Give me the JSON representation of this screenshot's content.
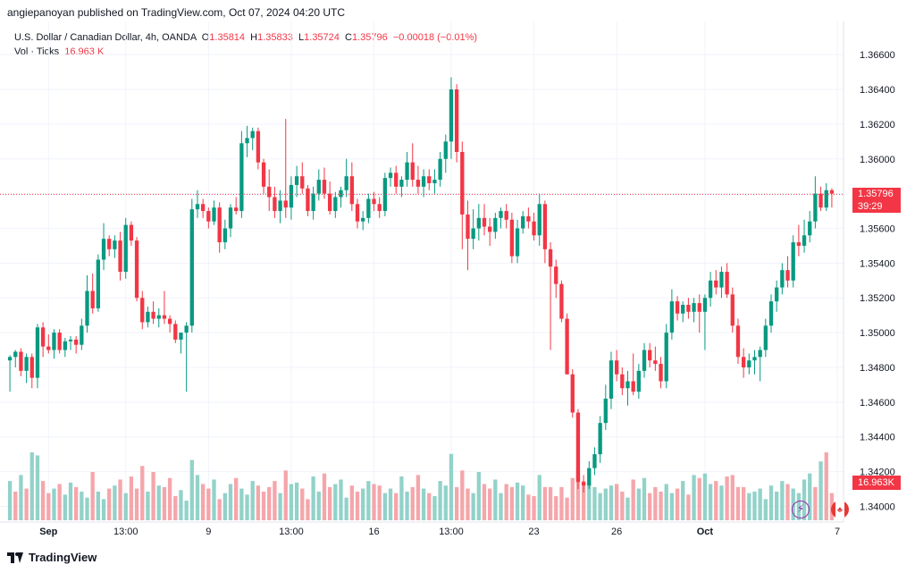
{
  "publisher": "angiepanoyan published on TradingView.com, Oct 07, 2024 04:20 UTC",
  "legend": {
    "symbol": "U.S. Dollar / Canadian Dollar, 4h, OANDA",
    "o_label": "O",
    "o": "1.35814",
    "h_label": "H",
    "h": "1.35833",
    "l_label": "L",
    "l": "1.35724",
    "c_label": "C",
    "c": "1.35796",
    "change": "−0.00018 (−0.01%)",
    "vol_label": "Vol · Ticks",
    "vol_value": "16.963 K"
  },
  "price_tag": {
    "price": "1.35796",
    "countdown": "39:29"
  },
  "volume_tag": "16.963K",
  "footer": {
    "brand": "TradingView"
  },
  "colors": {
    "up": "#089981",
    "down": "#f23645",
    "vol_up": "#92d2c9",
    "vol_down": "#f5a6ab"
  },
  "icons": [
    "lightning-icon",
    "canada-flag-icon",
    "tradingview-logo-icon"
  ],
  "chart_data": {
    "type": "candlestick",
    "y_ticks": [
      "1.34000",
      "1.34200",
      "1.34400",
      "1.34600",
      "1.34800",
      "1.35000",
      "1.35200",
      "1.35400",
      "1.35600",
      "1.35800",
      "1.36000",
      "1.36200",
      "1.36400",
      "1.36600"
    ],
    "y_tick_values": [
      1.34,
      1.342,
      1.344,
      1.346,
      1.348,
      1.35,
      1.352,
      1.354,
      1.356,
      1.358,
      1.36,
      1.362,
      1.364,
      1.366
    ],
    "ylim": [
      1.3392,
      1.3675
    ],
    "x_ticks": [
      {
        "label": "Sep",
        "index": 7
      },
      {
        "label": "13:00",
        "index": 21
      },
      {
        "label": "9",
        "index": 36
      },
      {
        "label": "13:00",
        "index": 51
      },
      {
        "label": "16",
        "index": 66
      },
      {
        "label": "13:00",
        "index": 80
      },
      {
        "label": "23",
        "index": 95
      },
      {
        "label": "26",
        "index": 110
      },
      {
        "label": "Oct",
        "index": 126
      },
      {
        "label": "7",
        "index": 150
      }
    ],
    "grid": true,
    "last_price": 1.35796,
    "vol_max": 16000,
    "candles": [
      [
        1.3484,
        1.3487,
        1.3466,
        1.3486
      ],
      [
        1.3486,
        1.349,
        1.348,
        1.3489
      ],
      [
        1.3489,
        1.3491,
        1.3475,
        1.3478
      ],
      [
        1.3478,
        1.3488,
        1.3471,
        1.3486
      ],
      [
        1.3486,
        1.3488,
        1.3468,
        1.3474
      ],
      [
        1.3474,
        1.3505,
        1.3468,
        1.3503
      ],
      [
        1.3503,
        1.3506,
        1.3486,
        1.3492
      ],
      [
        1.3492,
        1.3499,
        1.3488,
        1.349
      ],
      [
        1.349,
        1.3502,
        1.3485,
        1.35
      ],
      [
        1.35,
        1.3502,
        1.3488,
        1.349
      ],
      [
        1.349,
        1.3497,
        1.3486,
        1.3495
      ],
      [
        1.3495,
        1.3498,
        1.349,
        1.3496
      ],
      [
        1.3496,
        1.3498,
        1.3488,
        1.3493
      ],
      [
        1.3493,
        1.3508,
        1.349,
        1.3504
      ],
      [
        1.3504,
        1.3533,
        1.35,
        1.3524
      ],
      [
        1.3524,
        1.3534,
        1.3511,
        1.3514
      ],
      [
        1.3514,
        1.3545,
        1.3512,
        1.3542
      ],
      [
        1.3542,
        1.3563,
        1.3536,
        1.3554
      ],
      [
        1.3554,
        1.3556,
        1.3544,
        1.3548
      ],
      [
        1.3548,
        1.3556,
        1.3543,
        1.3553
      ],
      [
        1.3553,
        1.3558,
        1.353,
        1.3535
      ],
      [
        1.3535,
        1.3566,
        1.3531,
        1.3562
      ],
      [
        1.3562,
        1.3564,
        1.355,
        1.3553
      ],
      [
        1.3553,
        1.3555,
        1.3518,
        1.352
      ],
      [
        1.352,
        1.3524,
        1.3502,
        1.3506
      ],
      [
        1.3506,
        1.3515,
        1.3503,
        1.3512
      ],
      [
        1.3512,
        1.3518,
        1.3505,
        1.3508
      ],
      [
        1.3508,
        1.3514,
        1.3503,
        1.351
      ],
      [
        1.351,
        1.3524,
        1.3505,
        1.3508
      ],
      [
        1.3508,
        1.351,
        1.35,
        1.3505
      ],
      [
        1.3505,
        1.3507,
        1.3494,
        1.3496
      ],
      [
        1.3496,
        1.35,
        1.3488,
        1.35
      ],
      [
        1.35,
        1.3506,
        1.3466,
        1.3504
      ],
      [
        1.3504,
        1.3577,
        1.35,
        1.3571
      ],
      [
        1.3571,
        1.3582,
        1.3566,
        1.3574
      ],
      [
        1.3574,
        1.3577,
        1.3566,
        1.357
      ],
      [
        1.357,
        1.3572,
        1.356,
        1.3564
      ],
      [
        1.3564,
        1.3576,
        1.3562,
        1.3572
      ],
      [
        1.3572,
        1.3575,
        1.3546,
        1.3552
      ],
      [
        1.3552,
        1.3565,
        1.3548,
        1.356
      ],
      [
        1.356,
        1.3574,
        1.3555,
        1.3572
      ],
      [
        1.3572,
        1.3578,
        1.3568,
        1.357
      ],
      [
        1.357,
        1.3616,
        1.3566,
        1.3609
      ],
      [
        1.3609,
        1.3619,
        1.3601,
        1.3612
      ],
      [
        1.3612,
        1.3618,
        1.3605,
        1.3616
      ],
      [
        1.3616,
        1.3618,
        1.3594,
        1.3598
      ],
      [
        1.3598,
        1.36,
        1.358,
        1.3584
      ],
      [
        1.3584,
        1.3594,
        1.357,
        1.3578
      ],
      [
        1.3578,
        1.3584,
        1.3566,
        1.357
      ],
      [
        1.357,
        1.3582,
        1.3563,
        1.3576
      ],
      [
        1.3576,
        1.3623,
        1.3566,
        1.3572
      ],
      [
        1.3572,
        1.359,
        1.3565,
        1.3585
      ],
      [
        1.3585,
        1.3596,
        1.3578,
        1.359
      ],
      [
        1.359,
        1.3598,
        1.358,
        1.3583
      ],
      [
        1.3583,
        1.3585,
        1.3567,
        1.357
      ],
      [
        1.357,
        1.3584,
        1.3565,
        1.358
      ],
      [
        1.358,
        1.3594,
        1.3576,
        1.3588
      ],
      [
        1.3588,
        1.3595,
        1.3577,
        1.358
      ],
      [
        1.358,
        1.3587,
        1.3568,
        1.357
      ],
      [
        1.357,
        1.3581,
        1.3566,
        1.3578
      ],
      [
        1.3578,
        1.3584,
        1.3572,
        1.3582
      ],
      [
        1.3582,
        1.36,
        1.3578,
        1.359
      ],
      [
        1.359,
        1.3598,
        1.357,
        1.3574
      ],
      [
        1.3574,
        1.3577,
        1.356,
        1.3564
      ],
      [
        1.3564,
        1.357,
        1.3559,
        1.3566
      ],
      [
        1.3566,
        1.358,
        1.3563,
        1.3577
      ],
      [
        1.3577,
        1.3581,
        1.357,
        1.3574
      ],
      [
        1.3574,
        1.3578,
        1.3566,
        1.357
      ],
      [
        1.357,
        1.3592,
        1.3567,
        1.3589
      ],
      [
        1.3589,
        1.3595,
        1.3584,
        1.3592
      ],
      [
        1.3592,
        1.3596,
        1.358,
        1.3584
      ],
      [
        1.3584,
        1.359,
        1.3578,
        1.3588
      ],
      [
        1.3588,
        1.3604,
        1.3584,
        1.3598
      ],
      [
        1.3598,
        1.3609,
        1.3584,
        1.3588
      ],
      [
        1.3588,
        1.3596,
        1.358,
        1.3584
      ],
      [
        1.3584,
        1.3594,
        1.3578,
        1.359
      ],
      [
        1.359,
        1.3594,
        1.3582,
        1.3586
      ],
      [
        1.3586,
        1.3594,
        1.358,
        1.3588
      ],
      [
        1.3588,
        1.3604,
        1.3584,
        1.36
      ],
      [
        1.36,
        1.3614,
        1.3592,
        1.361
      ],
      [
        1.361,
        1.3647,
        1.36,
        1.364
      ],
      [
        1.364,
        1.3643,
        1.3598,
        1.3604
      ],
      [
        1.3604,
        1.361,
        1.3548,
        1.3568
      ],
      [
        1.3568,
        1.3576,
        1.3536,
        1.3554
      ],
      [
        1.3554,
        1.3571,
        1.3548,
        1.356
      ],
      [
        1.356,
        1.3574,
        1.3553,
        1.3566
      ],
      [
        1.3566,
        1.3574,
        1.3556,
        1.3561
      ],
      [
        1.3561,
        1.3566,
        1.355,
        1.3558
      ],
      [
        1.3558,
        1.3569,
        1.3554,
        1.3566
      ],
      [
        1.3566,
        1.3572,
        1.356,
        1.357
      ],
      [
        1.357,
        1.3574,
        1.356,
        1.3565
      ],
      [
        1.3565,
        1.3569,
        1.354,
        1.3544
      ],
      [
        1.3544,
        1.3565,
        1.354,
        1.356
      ],
      [
        1.356,
        1.357,
        1.3557,
        1.3567
      ],
      [
        1.3567,
        1.3572,
        1.356,
        1.3564
      ],
      [
        1.3564,
        1.3569,
        1.3553,
        1.3556
      ],
      [
        1.3556,
        1.358,
        1.355,
        1.3574
      ],
      [
        1.3574,
        1.3576,
        1.354,
        1.3548
      ],
      [
        1.3548,
        1.3552,
        1.349,
        1.3538
      ],
      [
        1.3538,
        1.3542,
        1.352,
        1.3528
      ],
      [
        1.3528,
        1.353,
        1.3506,
        1.3508
      ],
      [
        1.3508,
        1.3511,
        1.3476,
        1.3476
      ],
      [
        1.3476,
        1.3479,
        1.3451,
        1.3454
      ],
      [
        1.3454,
        1.3456,
        1.341,
        1.3414
      ],
      [
        1.3414,
        1.3418,
        1.3408,
        1.3412
      ],
      [
        1.3412,
        1.3426,
        1.341,
        1.3422
      ],
      [
        1.3422,
        1.3434,
        1.3418,
        1.343
      ],
      [
        1.343,
        1.3452,
        1.3425,
        1.3448
      ],
      [
        1.3448,
        1.347,
        1.3444,
        1.3462
      ],
      [
        1.3462,
        1.3489,
        1.3456,
        1.3484
      ],
      [
        1.3484,
        1.349,
        1.3472,
        1.3476
      ],
      [
        1.3476,
        1.348,
        1.3464,
        1.3468
      ],
      [
        1.3468,
        1.3478,
        1.3458,
        1.3472
      ],
      [
        1.3472,
        1.3488,
        1.3464,
        1.3466
      ],
      [
        1.3466,
        1.3482,
        1.3462,
        1.3478
      ],
      [
        1.3478,
        1.3494,
        1.3474,
        1.349
      ],
      [
        1.349,
        1.3494,
        1.348,
        1.3484
      ],
      [
        1.3484,
        1.3492,
        1.3478,
        1.3482
      ],
      [
        1.3482,
        1.3486,
        1.3468,
        1.3472
      ],
      [
        1.3472,
        1.3505,
        1.3468,
        1.35
      ],
      [
        1.35,
        1.3525,
        1.3496,
        1.3518
      ],
      [
        1.3518,
        1.3521,
        1.3507,
        1.3511
      ],
      [
        1.3511,
        1.3518,
        1.3506,
        1.3516
      ],
      [
        1.3516,
        1.352,
        1.3508,
        1.3512
      ],
      [
        1.3512,
        1.352,
        1.3506,
        1.3517
      ],
      [
        1.3517,
        1.3522,
        1.35,
        1.3512
      ],
      [
        1.3512,
        1.3522,
        1.349,
        1.352
      ],
      [
        1.352,
        1.3535,
        1.3515,
        1.353
      ],
      [
        1.353,
        1.3536,
        1.3522,
        1.3526
      ],
      [
        1.3526,
        1.3538,
        1.352,
        1.3535
      ],
      [
        1.3535,
        1.354,
        1.352,
        1.3522
      ],
      [
        1.3522,
        1.3526,
        1.35,
        1.3504
      ],
      [
        1.3504,
        1.3508,
        1.3482,
        1.3486
      ],
      [
        1.3486,
        1.3491,
        1.3474,
        1.348
      ],
      [
        1.348,
        1.3488,
        1.3476,
        1.3484
      ],
      [
        1.3484,
        1.349,
        1.3476,
        1.3486
      ],
      [
        1.3486,
        1.3492,
        1.3472,
        1.349
      ],
      [
        1.349,
        1.3508,
        1.3486,
        1.3504
      ],
      [
        1.3504,
        1.3522,
        1.35,
        1.3518
      ],
      [
        1.3518,
        1.353,
        1.3512,
        1.3526
      ],
      [
        1.3526,
        1.354,
        1.3522,
        1.3536
      ],
      [
        1.3536,
        1.3544,
        1.3526,
        1.353
      ],
      [
        1.353,
        1.3556,
        1.3526,
        1.3552
      ],
      [
        1.3552,
        1.3562,
        1.3544,
        1.355
      ],
      [
        1.355,
        1.3565,
        1.3546,
        1.3556
      ],
      [
        1.3556,
        1.357,
        1.3552,
        1.3564
      ],
      [
        1.3564,
        1.359,
        1.356,
        1.358
      ],
      [
        1.358,
        1.3584,
        1.357,
        1.3572
      ],
      [
        1.3572,
        1.3586,
        1.357,
        1.3582
      ],
      [
        1.3582,
        1.3583,
        1.3572,
        1.358
      ]
    ],
    "volume": [
      5200,
      3800,
      6000,
      4200,
      9000,
      8600,
      5200,
      3600,
      4200,
      4800,
      3400,
      5000,
      4400,
      3800,
      3000,
      6400,
      3800,
      2800,
      4200,
      4600,
      5400,
      3600,
      5800,
      4200,
      7200,
      3800,
      6400,
      4600,
      4400,
      5600,
      3200,
      4000,
      2600,
      8000,
      6000,
      4800,
      4200,
      5400,
      2800,
      3600,
      4800,
      5600,
      4200,
      3400,
      5200,
      4600,
      3800,
      4400,
      5200,
      3600,
      6600,
      4800,
      5000,
      4200,
      2800,
      5800,
      3800,
      6200,
      4400,
      4800,
      5400,
      3000,
      4600,
      3800,
      4200,
      5200,
      4800,
      4600,
      3600,
      4200,
      3600,
      5800,
      3800,
      4400,
      6000,
      4200,
      3600,
      3200,
      5200,
      4600,
      8800,
      4400,
      6600,
      4200,
      3600,
      6400,
      4800,
      4200,
      5400,
      3600,
      4800,
      4400,
      5000,
      4600,
      3400,
      3200,
      6000,
      4400,
      4400,
      3200,
      4400,
      3000,
      5600,
      6800,
      5200,
      4800,
      4400,
      3600,
      4200,
      4600,
      4800,
      3800,
      3000,
      5400,
      4200,
      5600,
      3600,
      4400,
      3800,
      4800,
      3600,
      4200,
      5200,
      3400,
      6000,
      5600,
      6200,
      4800,
      5200,
      4600,
      5800,
      6000,
      4400,
      4400,
      3600,
      3800,
      4200,
      2800,
      4600,
      3800,
      5200,
      4800,
      4200,
      3600,
      5400,
      6200,
      4400,
      7800,
      9000,
      3600
    ],
    "vol_up": [
      true,
      false,
      true,
      false,
      true,
      true,
      false,
      false,
      true,
      false,
      true,
      true,
      false,
      true,
      true,
      false,
      true,
      true,
      false,
      true,
      false,
      true,
      false,
      false,
      false,
      true,
      false,
      true,
      false,
      false,
      false,
      true,
      true,
      true,
      true,
      false,
      false,
      true,
      false,
      true,
      true,
      false,
      true,
      true,
      true,
      false,
      false,
      false,
      false,
      true,
      false,
      true,
      true,
      false,
      false,
      true,
      true,
      false,
      false,
      true,
      true,
      true,
      false,
      false,
      true,
      true,
      false,
      false,
      true,
      true,
      false,
      true,
      true,
      false,
      false,
      true,
      false,
      true,
      true,
      true,
      true,
      false,
      false,
      false,
      true,
      true,
      false,
      false,
      true,
      true,
      false,
      false,
      true,
      true,
      false,
      false,
      true,
      false,
      false,
      false,
      false,
      false,
      false,
      false,
      false,
      true,
      true,
      true,
      true,
      true,
      false,
      false,
      true,
      false,
      true,
      true,
      false,
      false,
      false,
      true,
      true,
      false,
      true,
      false,
      true,
      false,
      true,
      true,
      false,
      true,
      false,
      false,
      false,
      false,
      true,
      true,
      true,
      true,
      true,
      true,
      true,
      false,
      true,
      true,
      true,
      true,
      false,
      true,
      false,
      false
    ]
  }
}
